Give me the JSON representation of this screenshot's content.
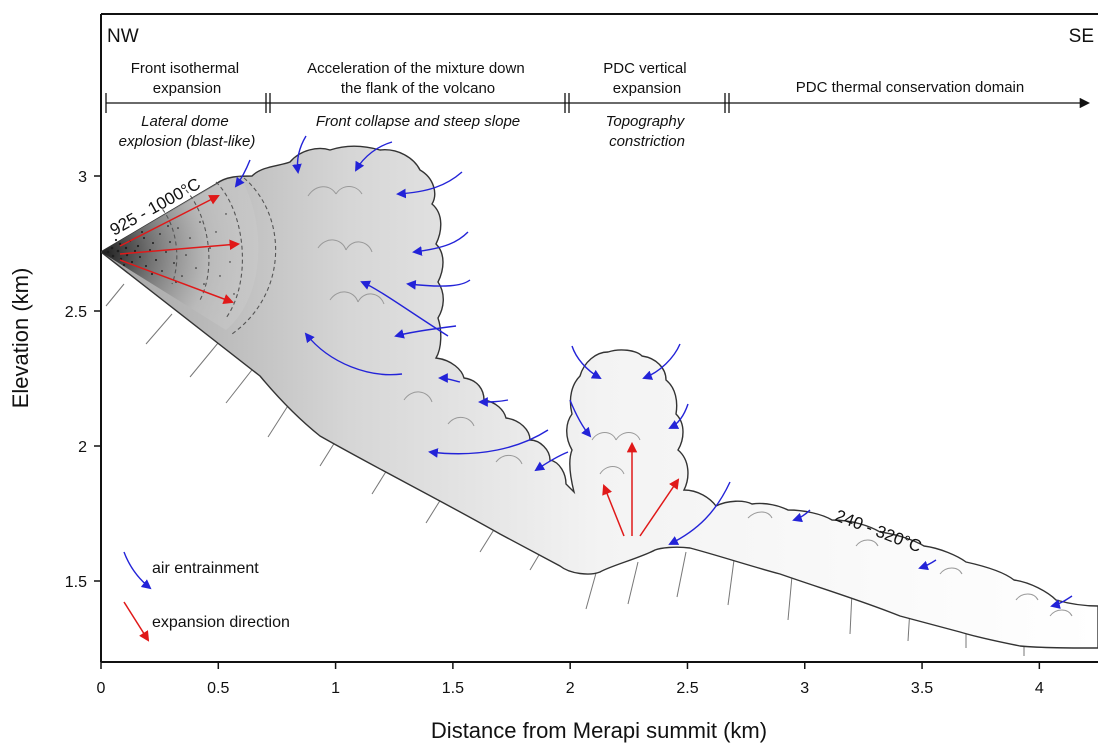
{
  "directions": {
    "left": "NW",
    "right": "SE"
  },
  "phases": [
    {
      "title_lines": [
        "Front isothermal",
        "expansion"
      ],
      "process_lines": [
        "Lateral dome",
        "explosion (blast-like)"
      ]
    },
    {
      "title_lines": [
        "Acceleration of the mixture down",
        "the flank of the volcano"
      ],
      "process_lines": [
        "Front collapse and steep slope"
      ]
    },
    {
      "title_lines": [
        "PDC vertical",
        "expansion"
      ],
      "process_lines": [
        "Topography",
        "constriction"
      ]
    },
    {
      "title_lines": [
        "PDC thermal conservation domain"
      ],
      "process_lines": []
    }
  ],
  "temperatures": {
    "dome": "925 - 1000°C",
    "flow": "240 - 320°C"
  },
  "legend": {
    "air": "air entrainment",
    "expansion": "expansion direction"
  },
  "axes": {
    "xlabel": "Distance from Merapi summit (km)",
    "ylabel": "Elevation (km)",
    "xticks": [
      "0",
      "0.5",
      "1",
      "1.5",
      "2",
      "2.5",
      "3",
      "3.5",
      "4"
    ],
    "yticks": [
      "1.5",
      "2",
      "2.5",
      "3"
    ],
    "xlim": [
      0,
      4.25
    ],
    "ylim": [
      1.2,
      3.6
    ]
  },
  "colors": {
    "air_entrainment": "#2323d8",
    "expansion": "#e01919",
    "outline": "#333333"
  }
}
